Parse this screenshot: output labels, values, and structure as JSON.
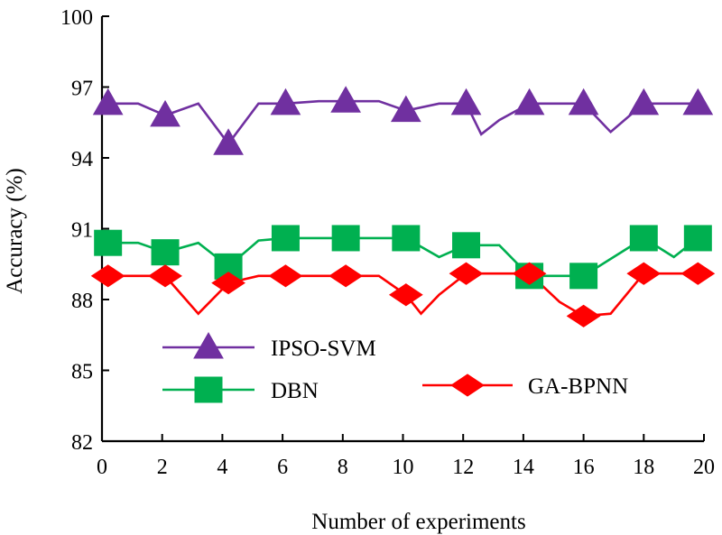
{
  "chart_data": {
    "type": "line",
    "title": "",
    "xlabel": "Number of experiments",
    "ylabel": "Accuracy (%)",
    "xlim": [
      0,
      20
    ],
    "ylim": [
      82,
      100
    ],
    "xticks": [
      0,
      2,
      4,
      6,
      8,
      10,
      12,
      14,
      16,
      18,
      20
    ],
    "yticks": [
      82,
      85,
      88,
      91,
      94,
      97,
      100
    ],
    "grid": false,
    "series": [
      {
        "name": "IPSO-SVM",
        "color": "#7030a0",
        "marker": "triangle",
        "x": [
          0.2,
          1.2,
          2.1,
          3.2,
          4.2,
          5.2,
          6.1,
          7.2,
          8.1,
          9.2,
          10.1,
          11.2,
          12.1,
          12.6,
          13.2,
          14.2,
          15.2,
          16.0,
          16.9,
          18.0,
          19.0,
          19.8
        ],
        "y": [
          96.3,
          96.3,
          95.8,
          96.3,
          94.6,
          96.3,
          96.3,
          96.4,
          96.4,
          96.4,
          96.0,
          96.3,
          96.3,
          95.0,
          95.6,
          96.3,
          96.3,
          96.3,
          95.1,
          96.3,
          96.3,
          96.3
        ]
      },
      {
        "name": "DBN",
        "color": "#00b050",
        "marker": "square",
        "x": [
          0.2,
          1.2,
          2.1,
          3.2,
          4.2,
          5.2,
          6.1,
          7.2,
          8.1,
          9.2,
          10.1,
          11.2,
          12.1,
          13.2,
          14.2,
          15.2,
          16.0,
          17.0,
          18.0,
          19.0,
          19.8
        ],
        "y": [
          90.4,
          90.4,
          90.0,
          90.4,
          89.4,
          90.5,
          90.6,
          90.6,
          90.6,
          90.6,
          90.6,
          89.8,
          90.3,
          90.3,
          89.0,
          89.0,
          89.0,
          89.8,
          90.6,
          89.8,
          90.6
        ]
      },
      {
        "name": "GA-BPNN",
        "color": "#ff0000",
        "marker": "diamond",
        "x": [
          0.2,
          1.2,
          2.1,
          3.2,
          4.2,
          5.2,
          6.1,
          7.2,
          8.1,
          9.2,
          10.1,
          10.6,
          11.2,
          12.1,
          13.2,
          14.2,
          15.2,
          16.0,
          16.9,
          18.0,
          19.0,
          19.8
        ],
        "y": [
          89.0,
          89.0,
          89.0,
          87.4,
          88.7,
          89.0,
          89.0,
          89.0,
          89.0,
          89.0,
          88.2,
          87.4,
          88.2,
          89.1,
          89.1,
          89.1,
          87.9,
          87.3,
          87.4,
          89.1,
          89.1,
          89.1
        ]
      }
    ],
    "legend": {
      "placement": "bottom-left",
      "entries": [
        "IPSO-SVM",
        "DBN",
        "GA-BPNN"
      ]
    }
  },
  "marker_x": {
    "IPSO-SVM": [
      0.2,
      2.1,
      4.2,
      6.1,
      8.1,
      10.1,
      12.1,
      14.2,
      16.0,
      18.0,
      19.8
    ],
    "DBN": [
      0.2,
      2.1,
      4.2,
      6.1,
      8.1,
      10.1,
      12.1,
      14.2,
      16.0,
      18.0,
      19.8
    ],
    "GA-BPNN": [
      0.2,
      2.1,
      4.2,
      6.1,
      8.1,
      10.1,
      12.1,
      14.2,
      16.0,
      18.0,
      19.8
    ]
  }
}
